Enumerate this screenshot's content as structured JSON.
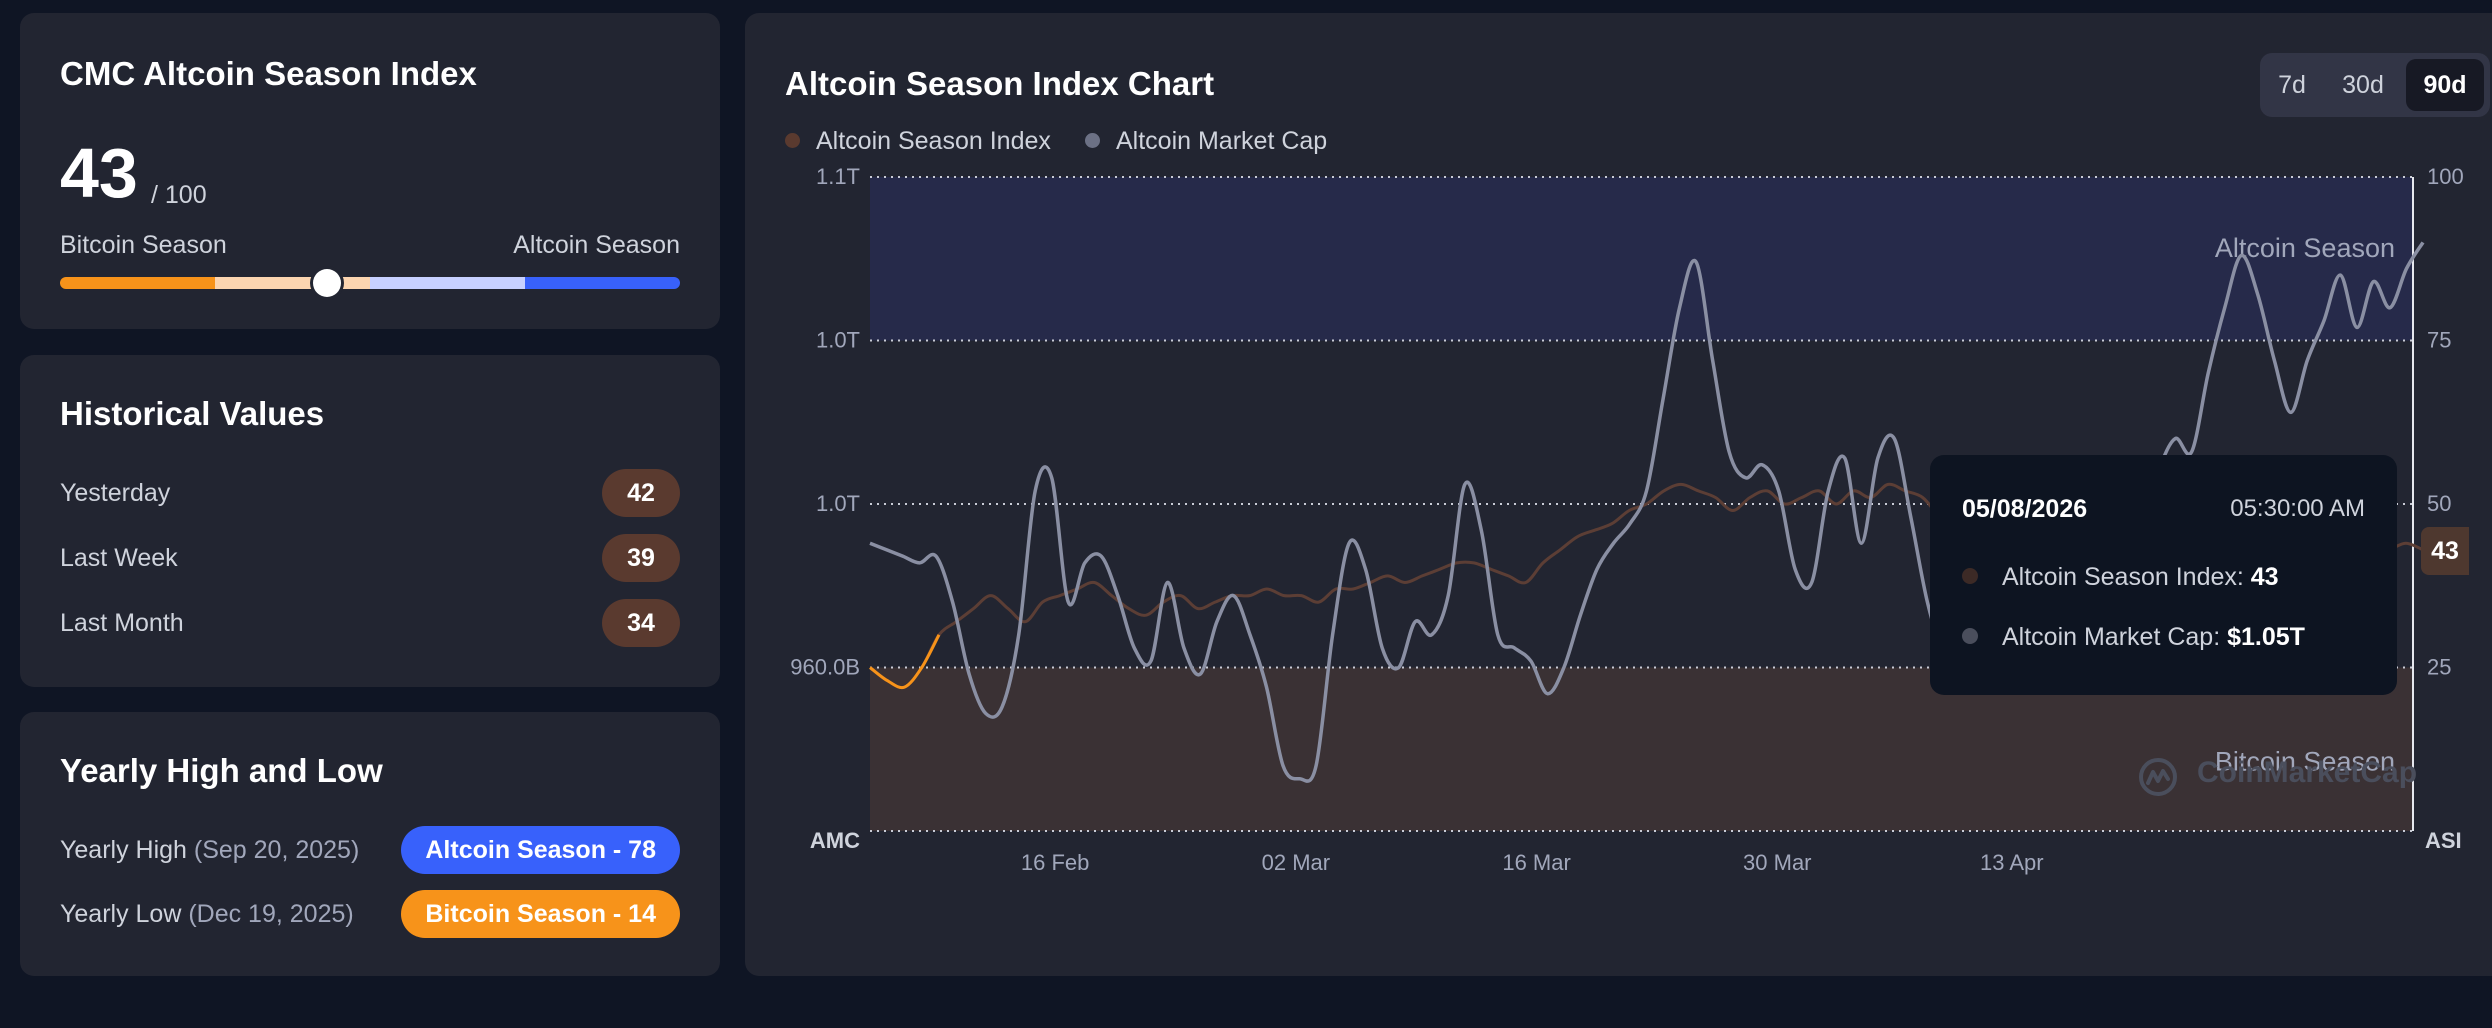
{
  "index_card": {
    "title": "CMC Altcoin Season Index",
    "value": "43",
    "max": "/ 100",
    "left_label": "Bitcoin Season",
    "right_label": "Altcoin Season",
    "colors": {
      "bitcoin": "#f7931a",
      "bitcoin_light": "#fcd5b0",
      "altcoin_light": "#c7d0ff",
      "altcoin": "#3861fb"
    }
  },
  "historical": {
    "title": "Historical Values",
    "rows": [
      {
        "label": "Yesterday",
        "value": "42"
      },
      {
        "label": "Last Week",
        "value": "39"
      },
      {
        "label": "Last Month",
        "value": "34"
      }
    ]
  },
  "yearly": {
    "title": "Yearly High and Low",
    "high": {
      "label": "Yearly High",
      "date": "(Sep 20, 2025)",
      "pill": "Altcoin Season - 78",
      "color": "#3861fb"
    },
    "low": {
      "label": "Yearly Low",
      "date": "(Dec 19, 2025)",
      "pill": "Bitcoin Season - 14",
      "color": "#f7931a"
    }
  },
  "chart": {
    "title": "Altcoin Season Index Chart",
    "range_buttons": [
      "7d",
      "30d",
      "90d"
    ],
    "active_range": "90d",
    "legend": [
      {
        "label": "Altcoin Season Index",
        "color": "#5a3a2f"
      },
      {
        "label": "Altcoin Market Cap",
        "color": "#6c7185"
      }
    ],
    "zone_labels": {
      "top": "Altcoin Season",
      "bottom": "Bitcoin Season"
    },
    "left_axis_title": "AMC",
    "right_axis_title": "ASI",
    "current_value": "43",
    "watermark": "CoinMarketCap",
    "tooltip": {
      "date": "05/08/2026",
      "time": "05:30:00 AM",
      "index_label": "Altcoin Season Index:",
      "index_value": "43",
      "mcap_label": "Altcoin Market Cap:",
      "mcap_value": "$1.05T"
    }
  },
  "chart_data": {
    "type": "line",
    "title": "Altcoin Season Index Chart",
    "x_tick_labels": [
      "16 Feb",
      "02 Mar",
      "16 Mar",
      "30 Mar",
      "13 Apr"
    ],
    "left_axis": {
      "label": "AMC",
      "ticks": [
        "1.1T",
        "1.0T",
        "1.0T",
        "960.0B"
      ]
    },
    "right_axis": {
      "label": "ASI",
      "ticks": [
        100,
        75,
        50,
        25
      ],
      "ylim": [
        0,
        100
      ]
    },
    "zones": [
      {
        "name": "Altcoin Season",
        "from": 75,
        "to": 100,
        "color": "#262a4a"
      },
      {
        "name": "Bitcoin Season",
        "from": 0,
        "to": 25,
        "color": "#3a3134"
      }
    ],
    "series": [
      {
        "name": "Altcoin Season Index",
        "axis": "right",
        "color": "#5a3a2f",
        "values": [
          25,
          23,
          22,
          25,
          30,
          32,
          34,
          36,
          34,
          32,
          35,
          36,
          37,
          38,
          36,
          34,
          33,
          35,
          36,
          34,
          35,
          36,
          36,
          37,
          36,
          36,
          35,
          37,
          37,
          38,
          39,
          38,
          39,
          40,
          41,
          41,
          40,
          39,
          38,
          41,
          43,
          45,
          46,
          47,
          49,
          50,
          52,
          53,
          52,
          51,
          49,
          51,
          52,
          50,
          51,
          52,
          50,
          52,
          51,
          53,
          52,
          51,
          48,
          46,
          43,
          41,
          39,
          40,
          38,
          37,
          36,
          37,
          38,
          39,
          40,
          41,
          41,
          42,
          43,
          43,
          42,
          43,
          43,
          42,
          43,
          42,
          42,
          43,
          43,
          44,
          43
        ]
      },
      {
        "name": "Altcoin Market Cap",
        "axis": "left",
        "color": "#7d8296",
        "values": [
          44,
          43,
          42,
          41,
          42,
          35,
          24,
          18,
          19,
          30,
          52,
          54,
          35,
          41,
          42,
          36,
          28,
          26,
          38,
          28,
          24,
          32,
          36,
          30,
          22,
          10,
          8,
          10,
          30,
          44,
          40,
          28,
          25,
          32,
          30,
          36,
          53,
          46,
          30,
          28,
          26,
          21,
          25,
          33,
          40,
          44,
          47,
          52,
          66,
          80,
          87,
          72,
          58,
          54,
          56,
          52,
          40,
          38,
          52,
          57,
          44,
          57,
          60,
          48,
          35,
          27,
          24,
          29,
          35,
          41,
          32,
          28,
          30,
          36,
          40,
          48,
          42,
          45,
          55,
          60,
          58,
          70,
          80,
          88,
          82,
          72,
          64,
          72,
          78,
          85,
          77,
          84,
          80,
          86,
          90
        ]
      }
    ]
  }
}
